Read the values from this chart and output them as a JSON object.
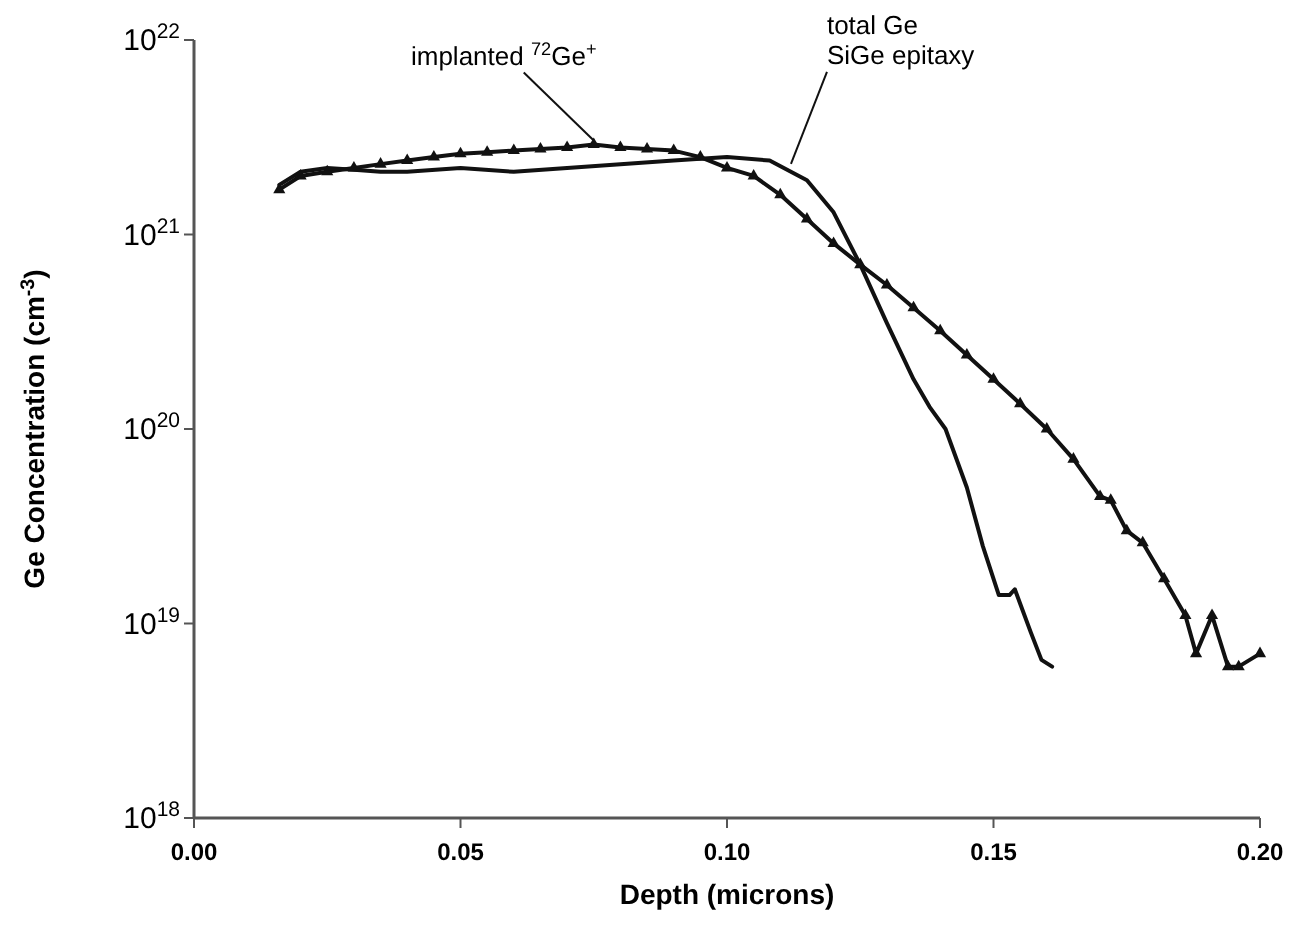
{
  "chart_data": {
    "type": "line",
    "xlabel": "Depth (microns)",
    "ylabel": "Ge Concentration (cm$^{-3}$)",
    "log": "y",
    "xlim": [
      0,
      0.2
    ],
    "xticks": [
      {
        "value": 0,
        "label": "0.00"
      },
      {
        "value": 0.05,
        "label": "0.05"
      },
      {
        "value": 0.1,
        "label": "0.10"
      },
      {
        "value": 0.15,
        "label": "0.15"
      },
      {
        "value": 0.2,
        "label": "0.20"
      }
    ],
    "ylim": [
      1e+18,
      1e+22
    ],
    "yticks": [
      {
        "value": 1e+18,
        "label": "10$^{18}$"
      },
      {
        "value": 1e+19,
        "label": "10$^{19}$"
      },
      {
        "value": 1e+20,
        "label": "10$^{20}$"
      },
      {
        "value": 1e+21,
        "label": "10$^{21}$"
      },
      {
        "value": 1e+22,
        "label": "10$^{22}$"
      }
    ],
    "grid": false,
    "line_style": "solid",
    "annotations": [
      {
        "text": "implanted $^{72}$Ge$^{+}$",
        "x": 0.075,
        "y": 2.9e+21
      },
      {
        "text": "total Ge\nSiGe epitaxy",
        "x": 0.112,
        "y": 2.2e+21
      }
    ],
    "series": [
      {
        "color": "#111111",
        "marker": "triangle",
        "x": [
          0.016,
          0.02,
          0.025,
          0.03,
          0.035,
          0.04,
          0.045,
          0.05,
          0.055,
          0.06,
          0.065,
          0.07,
          0.075,
          0.08,
          0.085,
          0.09,
          0.095,
          0.1,
          0.105,
          0.11,
          0.115,
          0.12,
          0.125,
          0.13,
          0.135,
          0.14,
          0.145,
          0.15,
          0.155,
          0.16,
          0.165,
          0.17,
          0.172,
          0.175,
          0.178,
          0.182,
          0.186,
          0.188,
          0.191,
          0.194,
          0.196,
          0.2
        ],
        "values": [
          1.7e+21,
          2e+21,
          2.1e+21,
          2.2e+21,
          2.3e+21,
          2.4e+21,
          2.5e+21,
          2.6e+21,
          2.65e+21,
          2.7e+21,
          2.75e+21,
          2.8e+21,
          2.9e+21,
          2.8e+21,
          2.75e+21,
          2.7e+21,
          2.5e+21,
          2.2e+21,
          2e+21,
          1.6e+21,
          1.2e+21,
          9e+20,
          7e+20,
          5.5e+20,
          4.2e+20,
          3.2e+20,
          2.4e+20,
          1.8e+20,
          1.35e+20,
          1e+20,
          7e+19,
          4.5e+19,
          4.3e+19,
          3e+19,
          2.6e+19,
          1.7e+19,
          1.1e+19,
          7e+18,
          1.1e+19,
          6e+18,
          6e+18,
          7e+18
        ]
      },
      {
        "color": "#111111",
        "marker": "none",
        "x": [
          0.016,
          0.02,
          0.025,
          0.03,
          0.035,
          0.04,
          0.05,
          0.06,
          0.07,
          0.08,
          0.09,
          0.1,
          0.108,
          0.115,
          0.12,
          0.125,
          0.13,
          0.135,
          0.138,
          0.141,
          0.145,
          0.148,
          0.151,
          0.153,
          0.154,
          0.157,
          0.159,
          0.161
        ],
        "values": [
          1.8e+21,
          2.1e+21,
          2.2e+21,
          2.15e+21,
          2.1e+21,
          2.1e+21,
          2.2e+21,
          2.1e+21,
          2.2e+21,
          2.3e+21,
          2.4e+21,
          2.5e+21,
          2.4e+21,
          1.9e+21,
          1.3e+21,
          7e+20,
          3.5e+20,
          1.8e+20,
          1.3e+20,
          1e+20,
          5e+19,
          2.5e+19,
          1.4e+19,
          1.4e+19,
          1.5e+19,
          9e+18,
          6.5e+18,
          6e+18
        ]
      }
    ]
  }
}
